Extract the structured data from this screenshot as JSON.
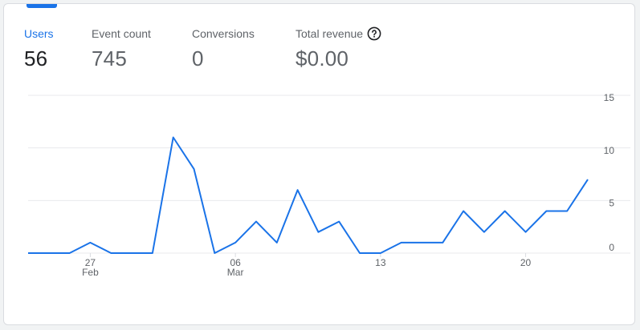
{
  "metrics": [
    {
      "label": "Users",
      "value": "56",
      "active": true
    },
    {
      "label": "Event count",
      "value": "745",
      "active": false
    },
    {
      "label": "Conversions",
      "value": "0",
      "active": false
    },
    {
      "label": "Total revenue",
      "value": "$0.00",
      "active": false,
      "help_icon": "help-circle-icon"
    }
  ],
  "colors": {
    "accent": "#1a73e8",
    "line": "#1a73e8",
    "grid": "#e8eaed",
    "text": "#5f6368"
  },
  "chart_data": {
    "type": "line",
    "series": [
      {
        "values": [
          0,
          0,
          0,
          1,
          0,
          0,
          0,
          11,
          8,
          0,
          1,
          3,
          1,
          6,
          2,
          3,
          0,
          0,
          1,
          1,
          1,
          4,
          2,
          4,
          2,
          4,
          4,
          7
        ]
      }
    ],
    "x_ticks": [
      {
        "index": 3,
        "label": "27",
        "sublabel": "Feb"
      },
      {
        "index": 10,
        "label": "06",
        "sublabel": "Mar"
      },
      {
        "index": 17,
        "label": "13",
        "sublabel": ""
      },
      {
        "index": 24,
        "label": "20",
        "sublabel": ""
      }
    ],
    "y_ticks": [
      0,
      5,
      10,
      15
    ],
    "ylim": [
      0,
      15
    ],
    "grid": true
  }
}
